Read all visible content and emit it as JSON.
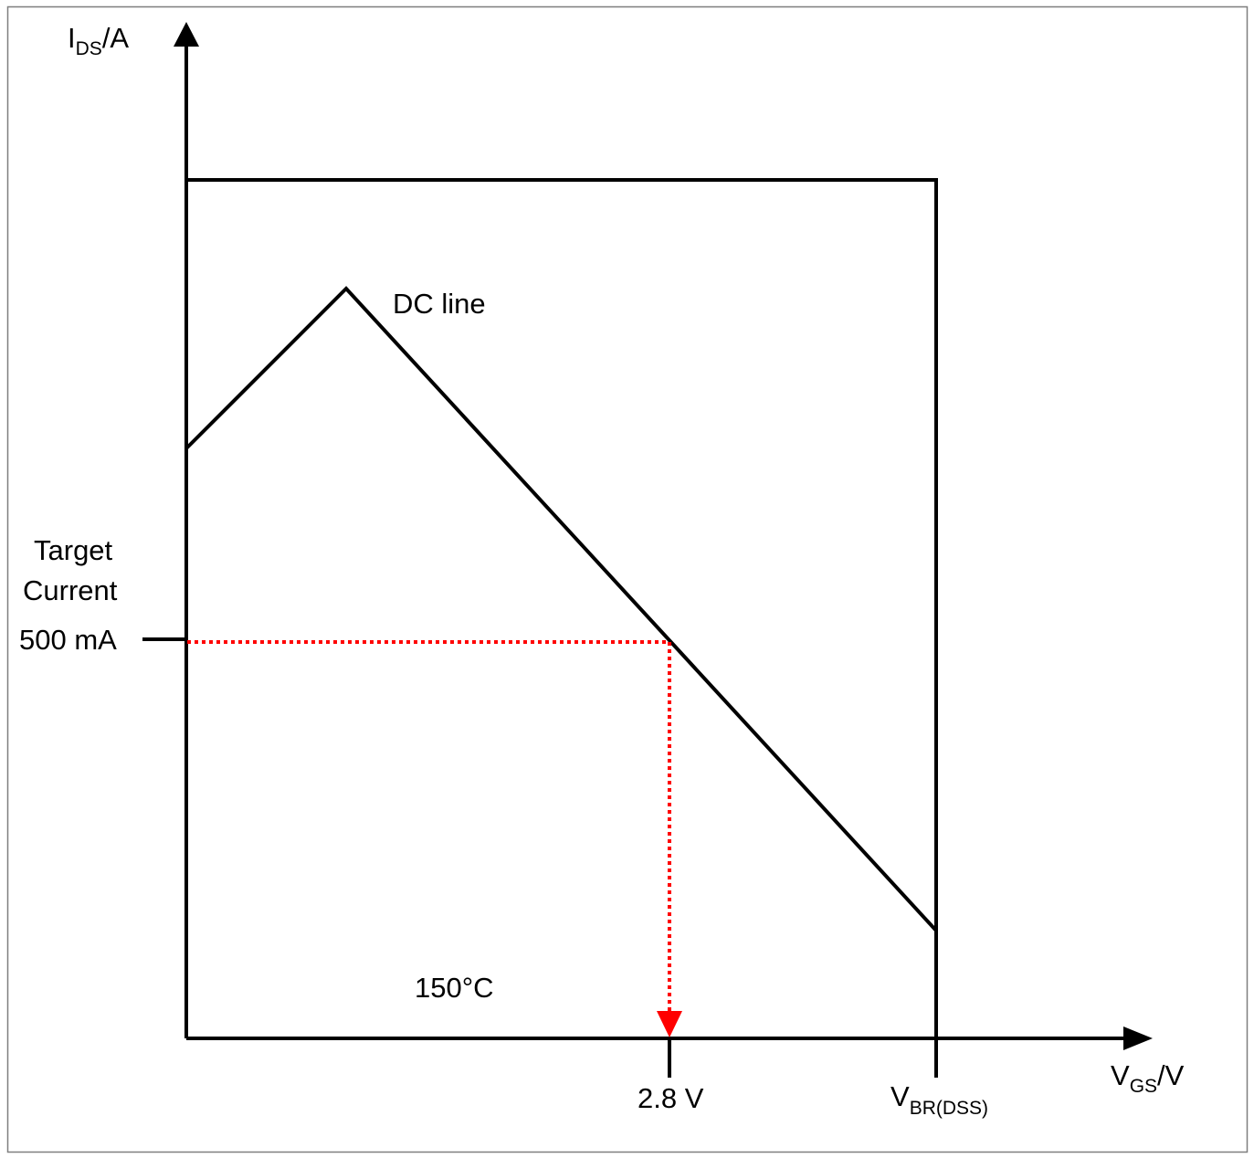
{
  "diagram": {
    "y_axis": {
      "symbol": "I",
      "subscript": "DS",
      "unit": "/A"
    },
    "x_axis": {
      "symbol": "V",
      "subscript": "GS",
      "unit": "/V"
    },
    "curve_label": "DC line",
    "temperature_label": "150°C",
    "target": {
      "caption_line1": "Target",
      "caption_line2": "Current",
      "current_label": "500 mA",
      "voltage_label": "2.8 V"
    },
    "breakdown": {
      "symbol": "V",
      "subscript": "BR(DSS)"
    },
    "colors": {
      "lines": "#000000",
      "target_marker": "#ff0000",
      "border": "#7f7f7f",
      "background": "#ffffff"
    }
  }
}
